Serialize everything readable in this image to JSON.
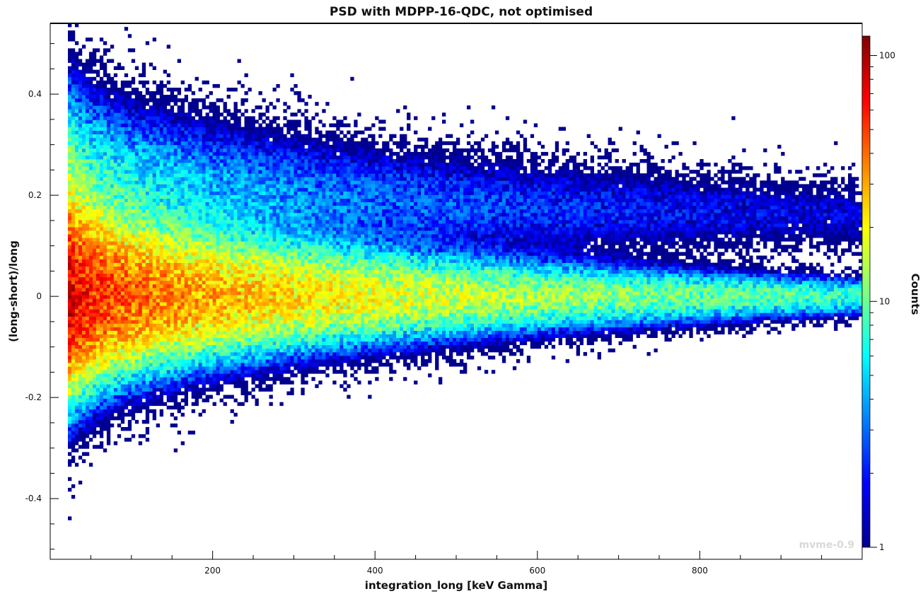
{
  "chart_data": {
    "type": "heatmap",
    "title": "PSD with MDPP-16-QDC, not optimised",
    "xlabel": "integration_long [keV Gamma]",
    "ylabel": "(long-short)/long",
    "colorbar_label": "Counts",
    "xlim": [
      0,
      1000
    ],
    "ylim": [
      -0.52,
      0.54
    ],
    "x_ticks": [
      200,
      400,
      600,
      800
    ],
    "x_tick_labels": [
      "200",
      "400",
      "600",
      "800"
    ],
    "y_ticks": [
      0.4,
      0.2,
      0,
      -0.2,
      -0.4
    ],
    "y_tick_labels": [
      "0.4",
      "0.2",
      "0",
      "-0.2",
      "-0.4"
    ],
    "colorbar_scale": "log",
    "colorbar_range": [
      1,
      120
    ],
    "colorbar_ticks": [
      100,
      10,
      1
    ],
    "colorbar_tick_labels": [
      "100",
      "10",
      "1"
    ],
    "colormap": [
      "#00008f",
      "#0000ff",
      "#0080ff",
      "#00ffff",
      "#80ff80",
      "#ffff00",
      "#ff8000",
      "#ff0000",
      "#800000"
    ],
    "grid": false,
    "bands": [
      {
        "name": "gamma band",
        "x_range": [
          20,
          1000
        ],
        "y_center": 0.0,
        "y_width_start": 0.11,
        "y_width_end": 0.02,
        "peak_counts_start": 100,
        "peak_counts_end": 8
      },
      {
        "name": "neutron band",
        "x_range": [
          20,
          1000
        ],
        "y_center_start": 0.24,
        "y_center_end": 0.16,
        "y_width_start": 0.12,
        "y_width_end": 0.04,
        "peak_counts_start": 12,
        "peak_counts_end": 1.5
      }
    ],
    "watermark": "mvme-0.9"
  }
}
